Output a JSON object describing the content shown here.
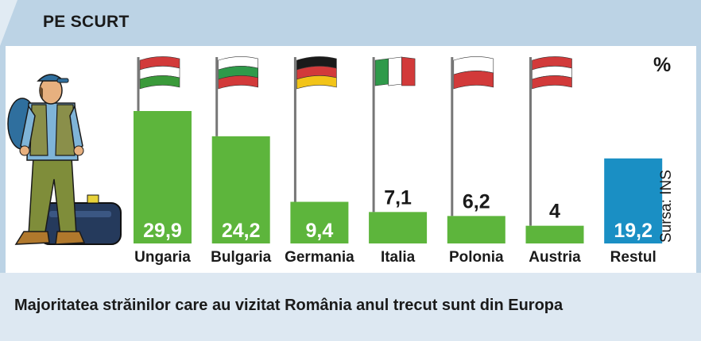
{
  "header": {
    "title": "PE SCURT"
  },
  "footer": {
    "caption": "Majoritatea străinilor care au vizitat România anul trecut sunt din Europa"
  },
  "unit_label": "%",
  "source_label": "Sursa: INS",
  "colors": {
    "bar": "#5db53c",
    "bar_highlight": "#1a8fc4",
    "header_band": "#bcd3e5",
    "footer_band": "#dde8f2"
  },
  "chart_data": {
    "type": "bar",
    "categories": [
      "Ungaria",
      "Bulgaria",
      "Germania",
      "Italia",
      "Polonia",
      "Austria",
      "Restul"
    ],
    "values": [
      29.9,
      24.2,
      9.4,
      7.1,
      6.2,
      4,
      19.2
    ],
    "value_labels": [
      "29,9",
      "24,2",
      "9,4",
      "7,1",
      "6,2",
      "4",
      "19,2"
    ],
    "highlighted": [
      "Restul"
    ],
    "flags": [
      "hungary-flag",
      "bulgaria-flag",
      "germany-flag",
      "italy-flag",
      "poland-flag",
      "austria-flag"
    ],
    "ylabel": "%",
    "ylim": [
      0,
      29.9
    ],
    "grid": false,
    "legend": "none"
  }
}
